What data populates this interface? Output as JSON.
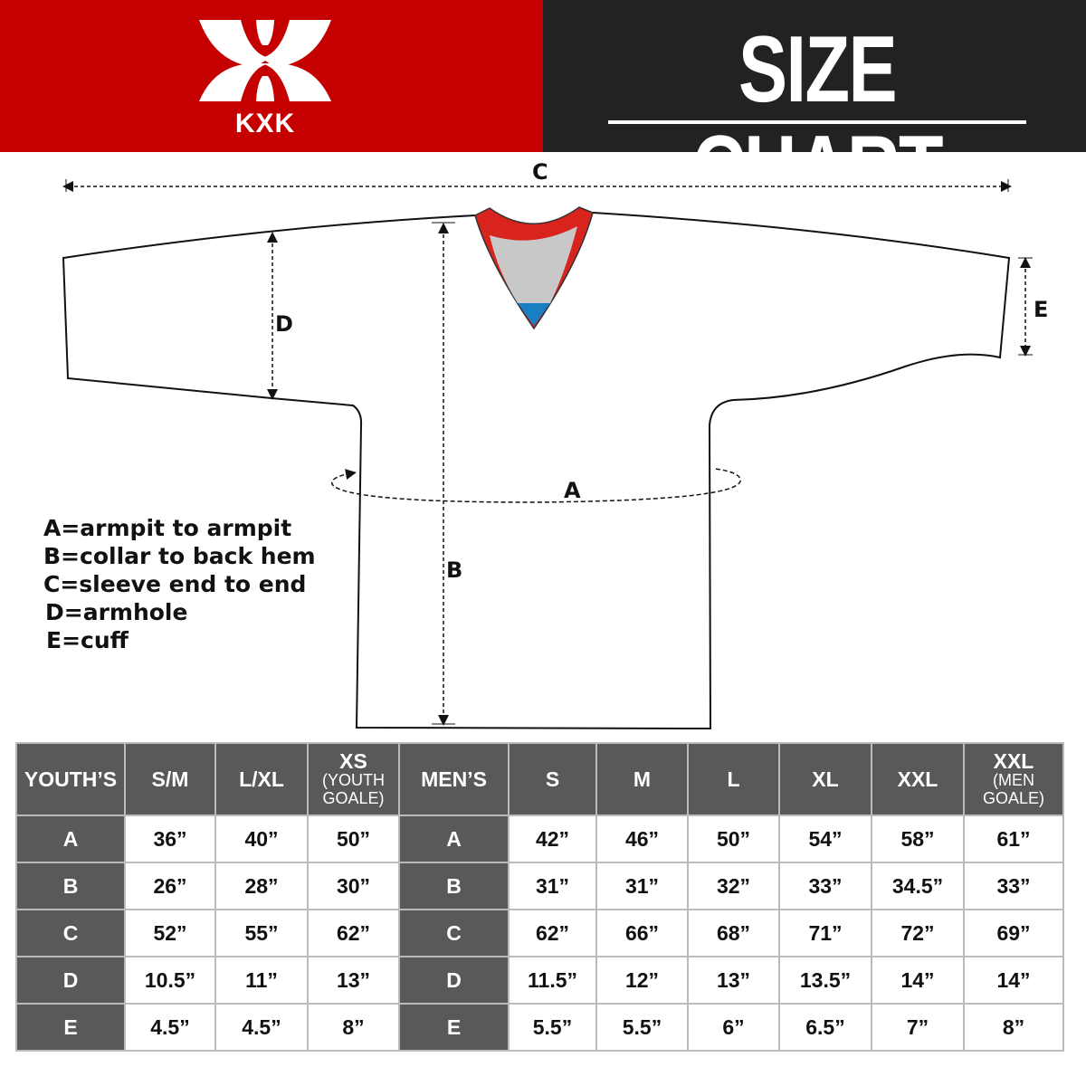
{
  "header": {
    "brand": "KXK",
    "title": "SIZE CHART",
    "colors": {
      "brand_red": "#c40000",
      "dark": "#222222",
      "table_header": "#58595b"
    }
  },
  "diagram": {
    "labels": {
      "a": "A",
      "b": "B",
      "c": "C",
      "d": "D",
      "e": "E"
    },
    "legend": [
      "A=armpit to armpit",
      "B=collar to back hem",
      "C=sleeve end to end",
      "D=armhole",
      "E=cuff"
    ]
  },
  "table": {
    "youth": {
      "header": "YOUTH’S",
      "columns": [
        {
          "main": "S/M",
          "sub": ""
        },
        {
          "main": "L/XL",
          "sub": ""
        },
        {
          "main": "XS",
          "sub": "(YOUTH GOALE)"
        }
      ]
    },
    "men": {
      "header": "MEN’S",
      "columns": [
        {
          "main": "S",
          "sub": ""
        },
        {
          "main": "M",
          "sub": ""
        },
        {
          "main": "L",
          "sub": ""
        },
        {
          "main": "XL",
          "sub": ""
        },
        {
          "main": "XXL",
          "sub": ""
        },
        {
          "main": "XXL",
          "sub": "(MEN GOALE)"
        }
      ]
    },
    "rows": [
      {
        "label": "A",
        "youth": [
          "36”",
          "40”",
          "50”"
        ],
        "men": [
          "42”",
          "46”",
          "50”",
          "54”",
          "58”",
          "61”"
        ]
      },
      {
        "label": "B",
        "youth": [
          "26”",
          "28”",
          "30”"
        ],
        "men": [
          "31”",
          "31”",
          "32”",
          "33”",
          "34.5”",
          "33”"
        ]
      },
      {
        "label": "C",
        "youth": [
          "52”",
          "55”",
          "62”"
        ],
        "men": [
          "62”",
          "66”",
          "68”",
          "71”",
          "72”",
          "69”"
        ]
      },
      {
        "label": "D",
        "youth": [
          "10.5”",
          "11”",
          "13”"
        ],
        "men": [
          "11.5”",
          "12”",
          "13”",
          "13.5”",
          "14”",
          "14”"
        ]
      },
      {
        "label": "E",
        "youth": [
          "4.5”",
          "4.5”",
          "8”"
        ],
        "men": [
          "5.5”",
          "5.5”",
          "6”",
          "6.5”",
          "7”",
          "8”"
        ]
      }
    ]
  }
}
